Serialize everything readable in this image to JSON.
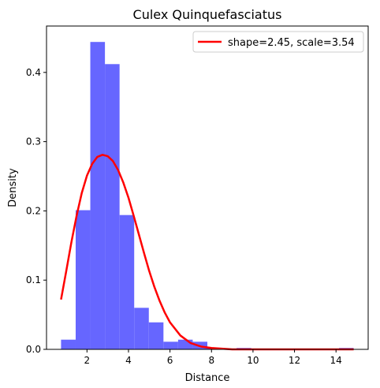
{
  "chart_data": {
    "type": "bar",
    "title": "Culex Quinquefasciatus",
    "xlabel": "Distance",
    "ylabel": "Density",
    "xlim": [
      0.05,
      15.55
    ],
    "ylim": [
      0,
      0.467
    ],
    "xticks": [
      2,
      4,
      6,
      8,
      10,
      12,
      14
    ],
    "yticks": [
      0.0,
      0.1,
      0.2,
      0.3,
      0.4
    ],
    "xtick_labels": [
      "2",
      "4",
      "6",
      "8",
      "10",
      "12",
      "14"
    ],
    "ytick_labels": [
      "0.0",
      "0.1",
      "0.2",
      "0.3",
      "0.4"
    ],
    "histogram": {
      "color": "#6666ff",
      "bin_edges": [
        0.75,
        1.455,
        2.16,
        2.865,
        3.57,
        4.275,
        4.98,
        5.685,
        6.39,
        7.095,
        7.8,
        8.505,
        9.21,
        9.915,
        10.62,
        11.325,
        12.03,
        12.735,
        13.44,
        14.145,
        14.85
      ],
      "values": [
        0.014,
        0.201,
        0.444,
        0.412,
        0.194,
        0.06,
        0.039,
        0.011,
        0.014,
        0.011,
        0.002,
        0.0,
        0.002,
        0.0,
        0.0,
        0.0,
        0.0,
        0.0,
        0.0,
        0.002
      ]
    },
    "series": [
      {
        "name": "shape=2.45, scale=3.54",
        "type": "line",
        "color": "#ff0000",
        "x": [
          0.75,
          1.0,
          1.25,
          1.5,
          1.75,
          2.0,
          2.25,
          2.5,
          2.75,
          3.0,
          3.25,
          3.5,
          3.75,
          4.0,
          4.25,
          4.5,
          4.75,
          5.0,
          5.25,
          5.5,
          5.75,
          6.0,
          6.5,
          7.0,
          7.5,
          8.0,
          8.5,
          9.0,
          10.0,
          11.0,
          12.0,
          13.0,
          14.0,
          14.85
        ],
        "values": [
          0.072,
          0.113,
          0.155,
          0.193,
          0.226,
          0.251,
          0.268,
          0.278,
          0.281,
          0.279,
          0.272,
          0.259,
          0.241,
          0.219,
          0.193,
          0.166,
          0.139,
          0.113,
          0.09,
          0.07,
          0.053,
          0.039,
          0.02,
          0.009,
          0.004,
          0.002,
          0.001,
          0.0,
          0.0,
          0.0,
          0.0,
          0.0,
          0.0,
          0.0
        ]
      }
    ],
    "legend": {
      "placement": "top-right",
      "entries": [
        "shape=2.45, scale=3.54"
      ]
    },
    "grid": false
  }
}
